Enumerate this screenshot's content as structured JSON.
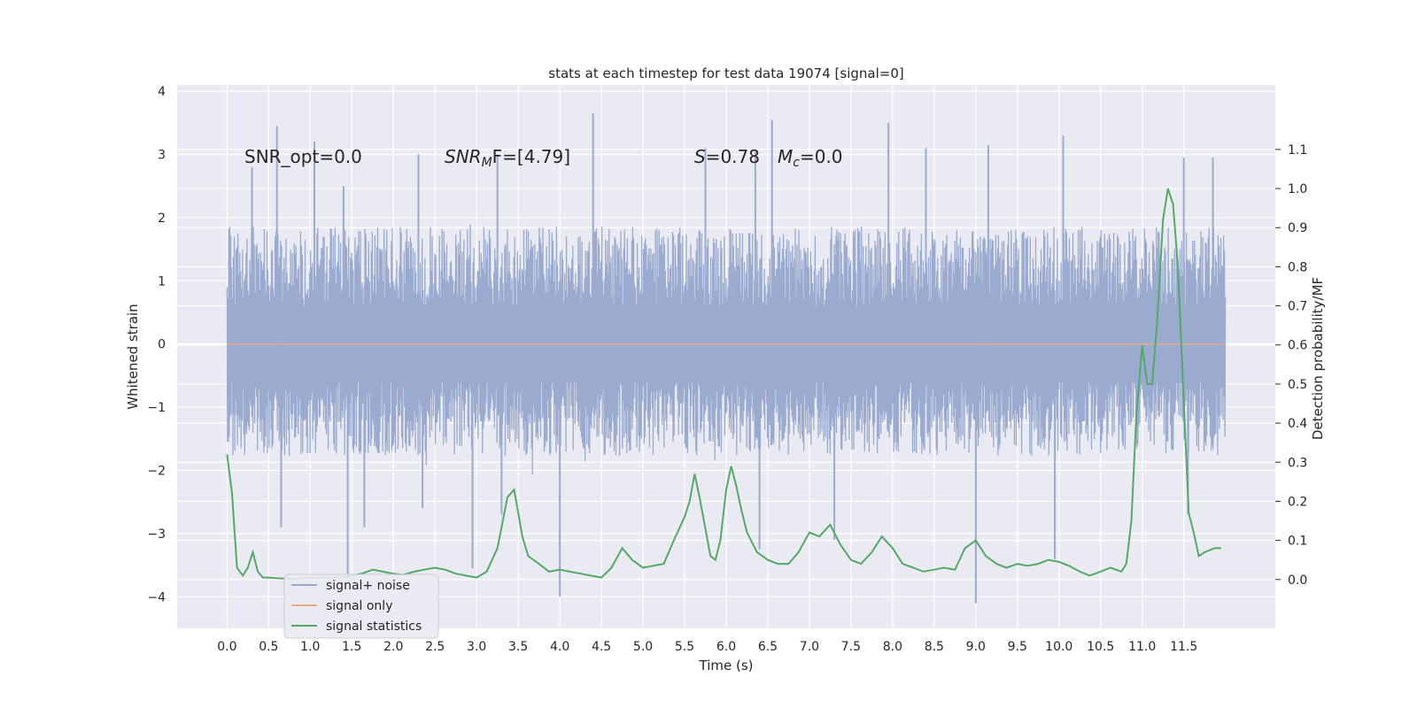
{
  "chart_data": {
    "type": "line",
    "title": "stats at each timestep for test data 19074 [signal=0]",
    "xlabel": "Time (s)",
    "ylabel_left": "Whitened strain",
    "ylabel_right": "Detection probability/MF",
    "xlim": [
      -0.6,
      12.6
    ],
    "ylim_left": [
      -4.5,
      4.1
    ],
    "ylim_right": [
      -0.125,
      1.265
    ],
    "x_ticks": [
      "0.0",
      "0.5",
      "1.0",
      "1.5",
      "2.0",
      "2.5",
      "3.0",
      "3.5",
      "4.0",
      "4.5",
      "5.0",
      "5.5",
      "6.0",
      "6.5",
      "7.0",
      "7.5",
      "8.0",
      "8.5",
      "9.0",
      "9.5",
      "10.0",
      "10.5",
      "11.0",
      "11.5"
    ],
    "y_ticks_left": [
      "4",
      "3",
      "2",
      "1",
      "0",
      "−1",
      "−2",
      "−3",
      "−4"
    ],
    "y_ticks_right": [
      "1.1",
      "1.0",
      "0.9",
      "0.8",
      "0.7",
      "0.6",
      "0.5",
      "0.4",
      "0.3",
      "0.2",
      "0.1",
      "0.0"
    ],
    "grid": true,
    "legend_position": "lower-left",
    "annotations": {
      "snr_opt": "SNR_opt=0.0",
      "snr_mf_a": "SNR",
      "snr_mf_sub": "M",
      "snr_mf_b": "F=[4.79]",
      "s_sym": "S",
      "s_val": "=0.78",
      "mc_sym": "M",
      "mc_sub": "c",
      "mc_val": "=0.0"
    },
    "series": [
      {
        "name": "signal+ noise",
        "axis": "left",
        "color": "#9aabcf",
        "x_range": [
          0.0,
          12.0
        ],
        "typical_envelope": [
          -1.9,
          2.0
        ],
        "spikes": [
          {
            "x": 0.3,
            "y": 2.8
          },
          {
            "x": 0.6,
            "y": 3.45
          },
          {
            "x": 0.65,
            "y": -2.9
          },
          {
            "x": 1.05,
            "y": 3.2
          },
          {
            "x": 1.4,
            "y": 2.5
          },
          {
            "x": 1.45,
            "y": -3.65
          },
          {
            "x": 1.65,
            "y": -2.9
          },
          {
            "x": 2.3,
            "y": 3.0
          },
          {
            "x": 2.35,
            "y": -2.6
          },
          {
            "x": 2.95,
            "y": -3.55
          },
          {
            "x": 3.25,
            "y": 3.0
          },
          {
            "x": 3.3,
            "y": -2.7
          },
          {
            "x": 4.0,
            "y": -4.0
          },
          {
            "x": 4.4,
            "y": 3.65
          },
          {
            "x": 5.75,
            "y": 3.1
          },
          {
            "x": 6.35,
            "y": 3.05
          },
          {
            "x": 6.4,
            "y": -3.25
          },
          {
            "x": 6.55,
            "y": 3.55
          },
          {
            "x": 7.3,
            "y": -3.1
          },
          {
            "x": 7.95,
            "y": 3.5
          },
          {
            "x": 8.4,
            "y": 3.1
          },
          {
            "x": 9.0,
            "y": -4.1
          },
          {
            "x": 9.15,
            "y": 3.15
          },
          {
            "x": 9.95,
            "y": -3.4
          },
          {
            "x": 10.05,
            "y": 3.3
          },
          {
            "x": 11.5,
            "y": 2.95
          },
          {
            "x": 11.55,
            "y": -2.7
          },
          {
            "x": 11.85,
            "y": 2.95
          }
        ]
      },
      {
        "name": "signal only",
        "axis": "left",
        "color": "#e8a889",
        "x": [
          0.0,
          12.0
        ],
        "y": [
          0.0,
          0.0
        ]
      },
      {
        "name": "signal statistics",
        "axis": "right",
        "color": "#55a868",
        "x": [
          0.0,
          0.06,
          0.12,
          0.19,
          0.25,
          0.31,
          0.37,
          0.43,
          0.5,
          0.62,
          0.75,
          0.87,
          1.0,
          1.12,
          1.25,
          1.37,
          1.5,
          1.62,
          1.75,
          1.87,
          2.0,
          2.12,
          2.25,
          2.37,
          2.5,
          2.62,
          2.75,
          2.87,
          3.0,
          3.12,
          3.25,
          3.37,
          3.45,
          3.5,
          3.55,
          3.62,
          3.75,
          3.87,
          4.0,
          4.12,
          4.25,
          4.37,
          4.5,
          4.62,
          4.75,
          4.87,
          5.0,
          5.12,
          5.25,
          5.37,
          5.5,
          5.56,
          5.62,
          5.68,
          5.75,
          5.81,
          5.87,
          5.93,
          6.0,
          6.06,
          6.12,
          6.18,
          6.25,
          6.37,
          6.5,
          6.62,
          6.75,
          6.87,
          7.0,
          7.12,
          7.25,
          7.37,
          7.5,
          7.62,
          7.75,
          7.87,
          8.0,
          8.12,
          8.25,
          8.37,
          8.5,
          8.62,
          8.75,
          8.87,
          9.0,
          9.12,
          9.25,
          9.37,
          9.5,
          9.62,
          9.75,
          9.87,
          10.0,
          10.12,
          10.25,
          10.37,
          10.5,
          10.62,
          10.75,
          10.81,
          10.87,
          10.93,
          11.0,
          11.06,
          11.12,
          11.18,
          11.25,
          11.31,
          11.37,
          11.43,
          11.5,
          11.56,
          11.62,
          11.68,
          11.75,
          11.87,
          11.95
        ],
        "y": [
          0.32,
          0.22,
          0.03,
          0.01,
          0.03,
          0.07,
          0.02,
          0.005,
          0.005,
          0.003,
          0.002,
          0.002,
          0.005,
          0.005,
          0.005,
          0.005,
          0.01,
          0.015,
          0.025,
          0.02,
          0.015,
          0.012,
          0.02,
          0.025,
          0.03,
          0.025,
          0.015,
          0.01,
          0.005,
          0.02,
          0.08,
          0.21,
          0.23,
          0.17,
          0.11,
          0.06,
          0.04,
          0.02,
          0.025,
          0.02,
          0.015,
          0.01,
          0.005,
          0.03,
          0.08,
          0.05,
          0.03,
          0.035,
          0.04,
          0.1,
          0.16,
          0.2,
          0.27,
          0.21,
          0.13,
          0.06,
          0.05,
          0.1,
          0.23,
          0.29,
          0.24,
          0.18,
          0.12,
          0.07,
          0.05,
          0.04,
          0.04,
          0.07,
          0.12,
          0.11,
          0.14,
          0.09,
          0.05,
          0.04,
          0.07,
          0.11,
          0.08,
          0.04,
          0.03,
          0.02,
          0.025,
          0.03,
          0.025,
          0.08,
          0.1,
          0.06,
          0.04,
          0.03,
          0.04,
          0.035,
          0.04,
          0.05,
          0.045,
          0.035,
          0.02,
          0.01,
          0.02,
          0.03,
          0.02,
          0.04,
          0.15,
          0.42,
          0.6,
          0.5,
          0.5,
          0.66,
          0.92,
          1.0,
          0.96,
          0.8,
          0.45,
          0.17,
          0.12,
          0.06,
          0.07,
          0.08,
          0.08
        ]
      }
    ]
  }
}
